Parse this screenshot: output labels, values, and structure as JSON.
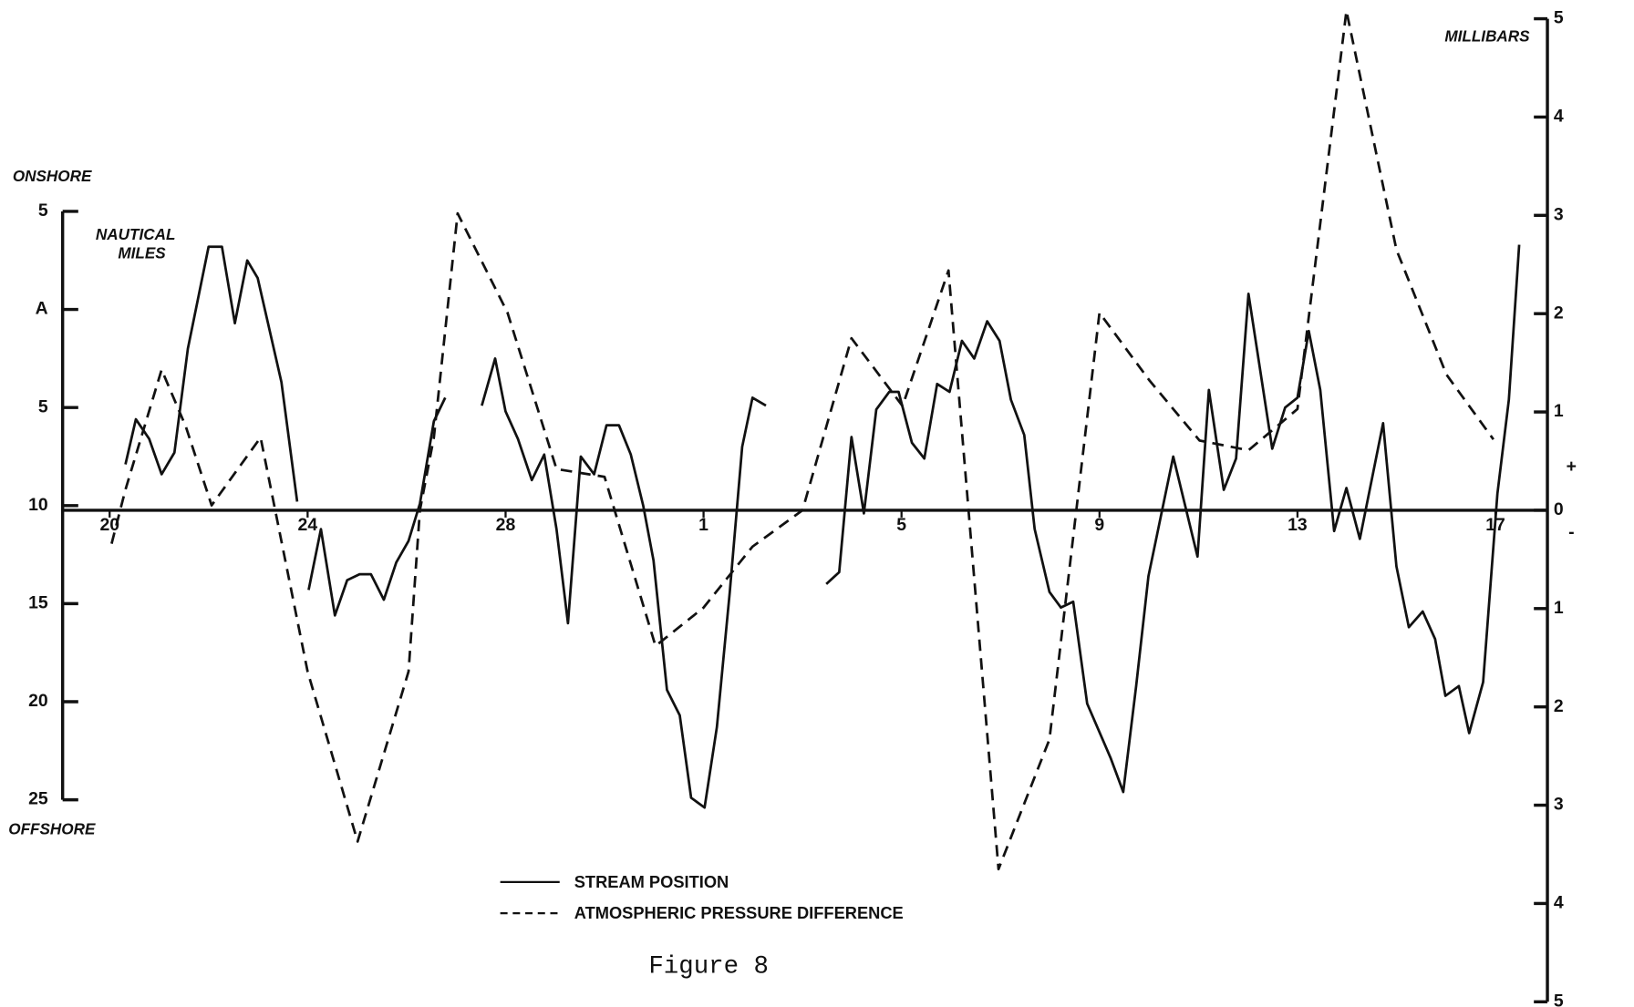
{
  "chart_data": {
    "type": "line",
    "title": "Figure 8",
    "annotations": {
      "top_left": "ONSHORE",
      "bottom_left": "OFFSHORE",
      "left_unit": [
        "NAUTICAL",
        "MILES"
      ],
      "right_unit": "MILLIBARS",
      "plus": "+",
      "minus": "-"
    },
    "xlim": [
      -0.95,
      29.05
    ],
    "xticks": [
      {
        "value": 0,
        "label": "20"
      },
      {
        "value": 4,
        "label": "24"
      },
      {
        "value": 8,
        "label": "28"
      },
      {
        "value": 12,
        "label": "1"
      },
      {
        "value": 16,
        "label": "5"
      },
      {
        "value": 20,
        "label": "9"
      },
      {
        "value": 24,
        "label": "13"
      },
      {
        "value": 28,
        "label": "17"
      }
    ],
    "ylim": [
      -5,
      25
    ],
    "y_inverted": true,
    "yticks": [
      {
        "value": -5,
        "label": "5"
      },
      {
        "value": 0,
        "label": "A"
      },
      5,
      10,
      15,
      20,
      25
    ],
    "y2lim": [
      -5,
      5
    ],
    "y2ticks": [
      {
        "value": -5,
        "label": "5"
      },
      {
        "value": -4,
        "label": "4"
      },
      {
        "value": -3,
        "label": "3"
      },
      {
        "value": -2,
        "label": "2"
      },
      {
        "value": -1,
        "label": "1"
      },
      0,
      1,
      2,
      3,
      4,
      5
    ],
    "series": [
      {
        "name": "STREAM POSITION",
        "color": "#111111",
        "linestyle": "solid",
        "axis": "y",
        "x": [
          0.32,
          0.53,
          0.8,
          1.05,
          1.31,
          1.58,
          2.0,
          2.27,
          2.53,
          2.78,
          2.99,
          3.47,
          3.79,
          null,
          4.02,
          4.27,
          4.55,
          4.8,
          5.05,
          5.28,
          5.54,
          5.79,
          6.04,
          6.27,
          6.55,
          6.78,
          null,
          7.52,
          7.79,
          8.0,
          8.25,
          8.53,
          8.78,
          9.03,
          9.26,
          9.52,
          9.79,
          10.04,
          10.29,
          10.53,
          10.78,
          10.99,
          11.26,
          11.52,
          11.75,
          12.02,
          12.27,
          12.53,
          12.78,
          12.99,
          13.26,
          null,
          14.48,
          14.74,
          14.99,
          15.24,
          15.49,
          15.75,
          15.94,
          16.21,
          16.46,
          16.72,
          16.97,
          17.22,
          17.47,
          17.73,
          17.98,
          18.21,
          18.48,
          18.69,
          18.99,
          19.22,
          19.47,
          19.75,
          20.23,
          20.48,
          20.74,
          20.99,
          21.49,
          21.98,
          22.21,
          22.51,
          22.76,
          23.01,
          23.49,
          23.75,
          24.0,
          24.23,
          24.46,
          24.74,
          24.99,
          25.26,
          25.73,
          26.0,
          26.25,
          26.53,
          26.78,
          26.99,
          27.26,
          27.47,
          27.75,
          28.04,
          28.27,
          28.48
        ],
        "values": [
          7.9,
          5.6,
          6.6,
          8.4,
          7.3,
          2.0,
          -3.2,
          -3.2,
          0.7,
          -2.5,
          -1.6,
          3.7,
          9.8,
          null,
          14.3,
          11.2,
          15.6,
          13.8,
          13.5,
          13.5,
          14.8,
          12.9,
          11.8,
          9.9,
          5.7,
          4.5,
          null,
          4.9,
          2.5,
          5.2,
          6.6,
          8.7,
          7.4,
          11.2,
          16.0,
          7.5,
          8.4,
          5.9,
          5.9,
          7.4,
          10.0,
          12.8,
          19.4,
          20.7,
          24.9,
          25.4,
          21.3,
          14.4,
          7.0,
          4.5,
          4.9,
          null,
          14.0,
          13.4,
          6.5,
          10.4,
          5.1,
          4.2,
          4.2,
          6.8,
          7.6,
          3.8,
          4.2,
          1.6,
          2.5,
          0.6,
          1.6,
          4.6,
          6.4,
          11.2,
          14.4,
          15.2,
          14.9,
          20.1,
          22.9,
          24.6,
          19.2,
          13.6,
          7.5,
          12.6,
          4.1,
          9.2,
          7.6,
          -0.8,
          7.1,
          5.0,
          4.5,
          1.1,
          4.1,
          11.3,
          9.1,
          11.7,
          5.8,
          13.1,
          16.2,
          15.4,
          16.8,
          19.7,
          19.2,
          21.6,
          19.0,
          9.4,
          4.6,
          -3.3
        ]
      },
      {
        "name": "ATMOSPHERIC PRESSURE DIFFERENCE",
        "color": "#111111",
        "linestyle": "dashed",
        "axis": "y2",
        "x": [
          0.04,
          0.32,
          1.05,
          1.54,
          2.06,
          3.05,
          4.0,
          5.01,
          6.04,
          6.27,
          6.55,
          7.03,
          8.04,
          9.03,
          10.0,
          11.03,
          12.0,
          12.99,
          14.0,
          14.99,
          16.02,
          16.95,
          17.96,
          18.99,
          20.0,
          21.01,
          22.02,
          23.01,
          24.0,
          24.99,
          26.0,
          27.01,
          27.96
        ],
        "values": [
          -0.34,
          0.21,
          1.43,
          0.85,
          0.05,
          0.74,
          -1.64,
          -3.37,
          -1.64,
          0.0,
          0.74,
          3.02,
          2.01,
          0.42,
          0.34,
          -1.38,
          -0.99,
          -0.37,
          0.0,
          1.75,
          1.06,
          2.44,
          -3.65,
          -2.33,
          2.01,
          1.32,
          0.71,
          0.61,
          1.03,
          5.08,
          2.65,
          1.38,
          0.72
        ]
      }
    ]
  }
}
